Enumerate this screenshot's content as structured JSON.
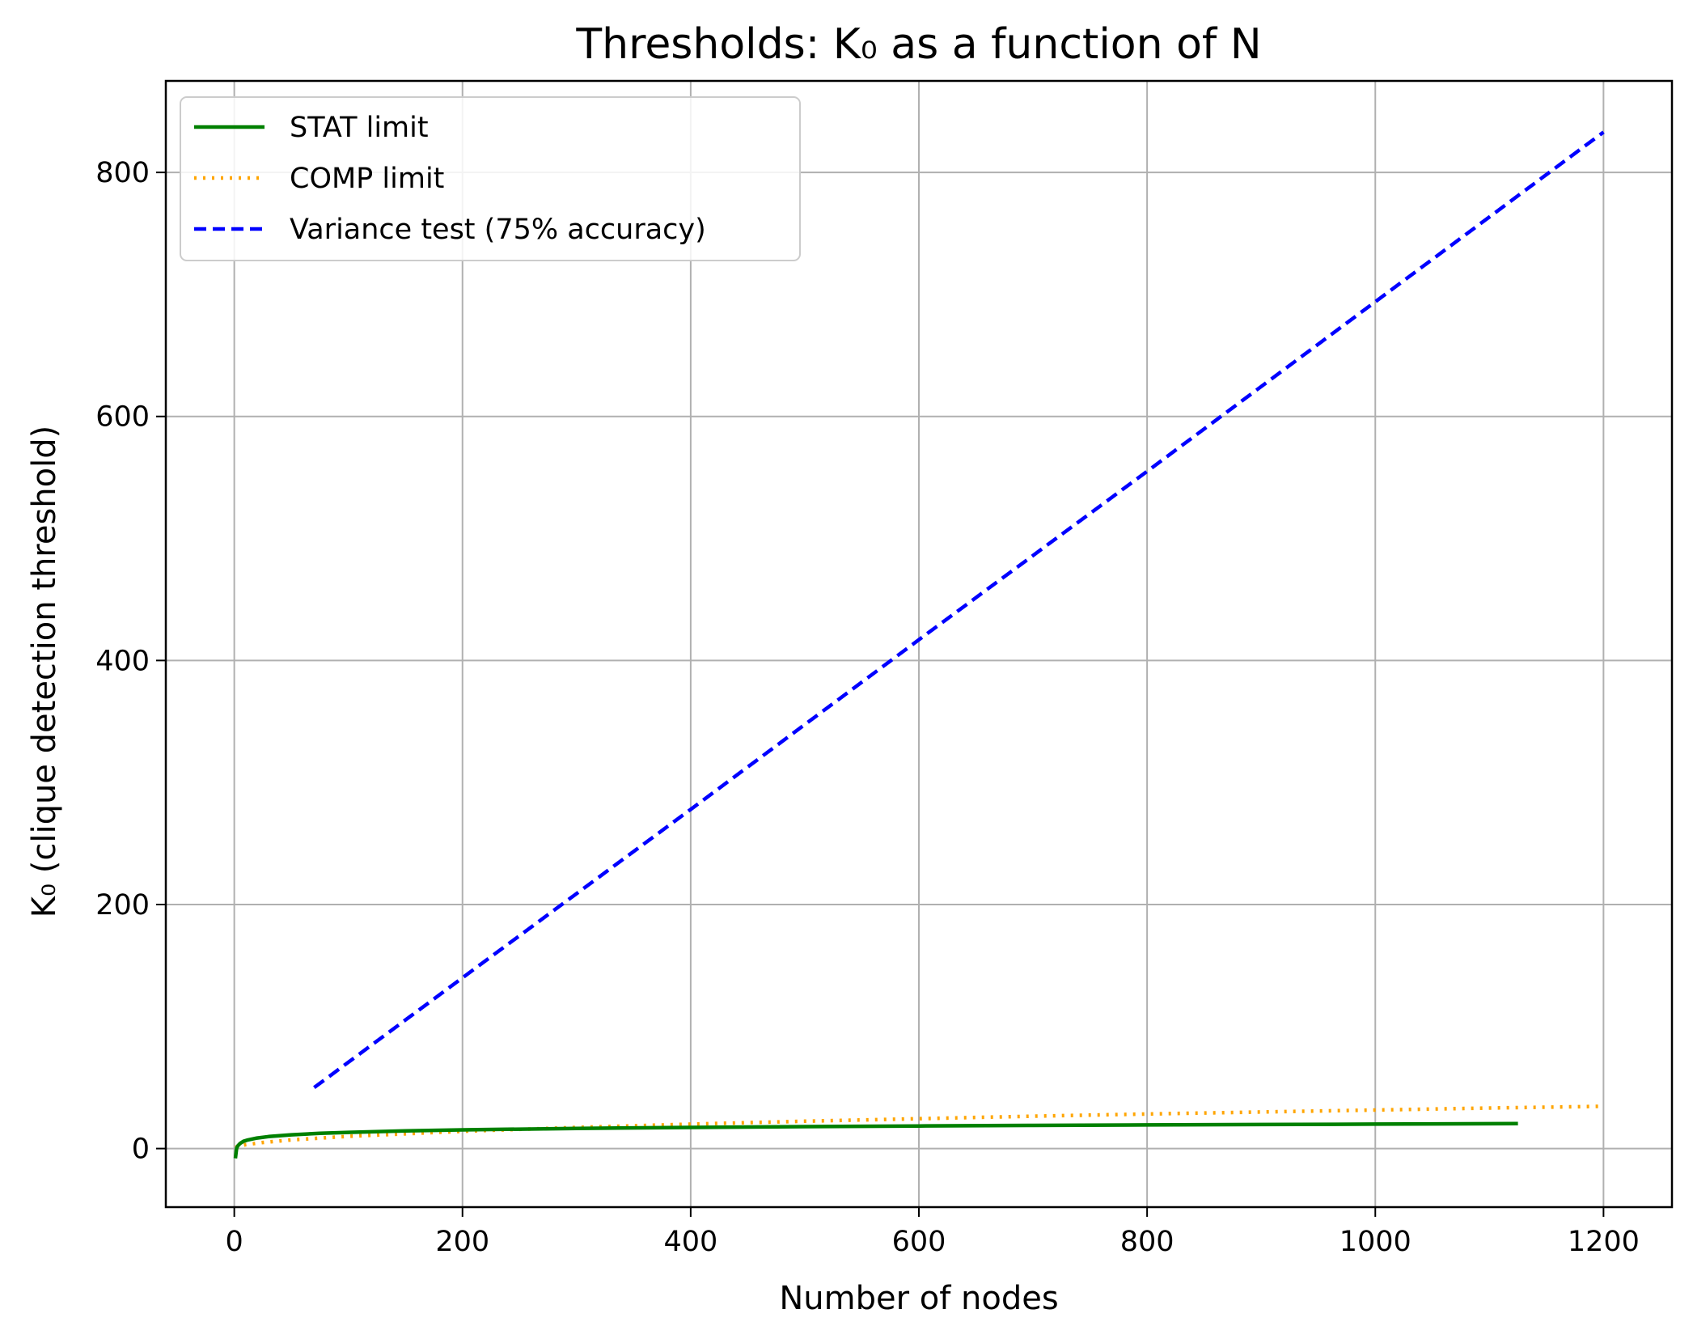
{
  "chart_data": {
    "type": "line",
    "title": "Thresholds: K₀ as a function of N",
    "xlabel": "Number of nodes",
    "ylabel": "K₀ (clique detection threshold)",
    "xlim": [
      -60,
      1260
    ],
    "ylim": [
      -48,
      875
    ],
    "xticks": [
      0,
      200,
      400,
      600,
      800,
      1000,
      1200
    ],
    "yticks": [
      0,
      200,
      400,
      600,
      800
    ],
    "grid": true,
    "legend_position": "top-left",
    "series": [
      {
        "name": "STAT limit",
        "color": "#008000",
        "style": "solid",
        "x": [
          1,
          2,
          3,
          5,
          8,
          12,
          20,
          30,
          50,
          75,
          100,
          150,
          200,
          300,
          400,
          500,
          600,
          700,
          800,
          900,
          1000,
          1125
        ],
        "y": [
          -8,
          0.2,
          2.1,
          4.1,
          5.9,
          7.1,
          8.6,
          9.8,
          11.3,
          12.5,
          13.3,
          14.5,
          15.3,
          16.5,
          17.3,
          18.0,
          18.5,
          19.0,
          19.4,
          19.7,
          20.0,
          20.4
        ]
      },
      {
        "name": "COMP limit",
        "color": "#ffa500",
        "style": "dotted",
        "x": [
          1,
          5,
          10,
          25,
          50,
          100,
          200,
          300,
          400,
          500,
          600,
          700,
          800,
          900,
          1000,
          1100,
          1200
        ],
        "y": [
          1.0,
          2.2,
          3.2,
          5.0,
          7.1,
          10.0,
          14.1,
          17.3,
          20.0,
          22.4,
          24.5,
          26.5,
          28.3,
          30.0,
          31.6,
          33.2,
          34.6
        ]
      },
      {
        "name": "Variance test (75% accuracy)",
        "color": "#0000ff",
        "style": "dashed",
        "x": [
          70,
          200,
          400,
          600,
          800,
          1000,
          1200
        ],
        "y": [
          50,
          140,
          278,
          417,
          555,
          694,
          833
        ]
      }
    ]
  }
}
